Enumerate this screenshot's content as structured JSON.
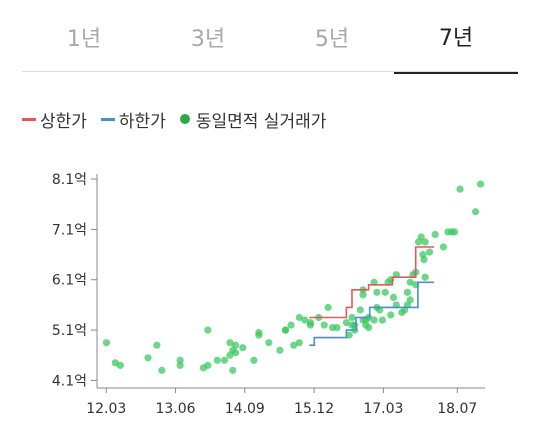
{
  "tabs": [
    {
      "label": "1년",
      "active": false
    },
    {
      "label": "3년",
      "active": false
    },
    {
      "label": "5년",
      "active": false
    },
    {
      "label": "7년",
      "active": true
    }
  ],
  "legend": [
    {
      "label": "상한가",
      "color": "#e05a5a",
      "shape": "line"
    },
    {
      "label": "하한가",
      "color": "#4a90c8",
      "shape": "line"
    },
    {
      "label": "동일면적 실거래가",
      "color": "#2aa84a",
      "shape": "dot"
    }
  ],
  "chart_data": {
    "type": "scatter",
    "x_axis": {
      "ticks": [
        "12.03",
        "13.06",
        "14.09",
        "15.12",
        "17.03",
        "18.07"
      ]
    },
    "y_axis": {
      "ticks": [
        "4.1억",
        "5.1억",
        "6.1억",
        "7.1억",
        "8.1억"
      ],
      "unit": "억",
      "range": [
        3.95,
        8.2
      ]
    },
    "colors": {
      "upper": "#e05a5a",
      "lower": "#4a90c8",
      "trades": "#3cc860",
      "axis": "#888888"
    },
    "series": [
      {
        "name": "상한가",
        "kind": "step",
        "points": [
          [
            2015.83,
            5.35
          ],
          [
            2016.5,
            5.35
          ],
          [
            2016.5,
            5.55
          ],
          [
            2016.6,
            5.55
          ],
          [
            2016.6,
            5.9
          ],
          [
            2016.9,
            5.9
          ],
          [
            2016.9,
            6.0
          ],
          [
            2017.33,
            6.0
          ],
          [
            2017.33,
            6.15
          ],
          [
            2017.75,
            6.15
          ],
          [
            2017.75,
            6.75
          ],
          [
            2018.08,
            6.75
          ]
        ]
      },
      {
        "name": "하한가",
        "kind": "step",
        "points": [
          [
            2015.83,
            4.8
          ],
          [
            2015.92,
            4.8
          ],
          [
            2015.92,
            4.95
          ],
          [
            2016.5,
            4.95
          ],
          [
            2016.5,
            5.1
          ],
          [
            2016.67,
            5.1
          ],
          [
            2016.67,
            5.35
          ],
          [
            2016.92,
            5.35
          ],
          [
            2016.92,
            5.55
          ],
          [
            2017.5,
            5.55
          ],
          [
            2017.5,
            5.55
          ],
          [
            2017.79,
            5.55
          ],
          [
            2017.79,
            6.05
          ],
          [
            2018.08,
            6.05
          ]
        ]
      },
      {
        "name": "동일면적 실거래가",
        "kind": "scatter",
        "points": [
          [
            2012.17,
            4.85
          ],
          [
            2012.33,
            4.45
          ],
          [
            2012.42,
            4.4
          ],
          [
            2012.92,
            4.55
          ],
          [
            2013.08,
            4.8
          ],
          [
            2013.17,
            4.3
          ],
          [
            2013.5,
            4.5
          ],
          [
            2013.5,
            4.4
          ],
          [
            2013.92,
            4.35
          ],
          [
            2014.0,
            5.1
          ],
          [
            2014.0,
            4.4
          ],
          [
            2014.17,
            4.5
          ],
          [
            2014.3,
            4.5
          ],
          [
            2014.4,
            4.85
          ],
          [
            2014.4,
            4.6
          ],
          [
            2014.45,
            4.7
          ],
          [
            2014.45,
            4.3
          ],
          [
            2014.5,
            4.8
          ],
          [
            2014.5,
            4.65
          ],
          [
            2014.63,
            4.75
          ],
          [
            2014.83,
            4.5
          ],
          [
            2014.92,
            5.0
          ],
          [
            2014.92,
            5.05
          ],
          [
            2015.1,
            4.85
          ],
          [
            2015.3,
            4.7
          ],
          [
            2015.4,
            5.1
          ],
          [
            2015.4,
            5.1
          ],
          [
            2015.5,
            5.2
          ],
          [
            2015.55,
            4.8
          ],
          [
            2015.65,
            4.85
          ],
          [
            2015.65,
            5.35
          ],
          [
            2015.75,
            5.3
          ],
          [
            2015.85,
            5.25
          ],
          [
            2015.85,
            5.2
          ],
          [
            2016.0,
            5.35
          ],
          [
            2016.1,
            5.2
          ],
          [
            2016.17,
            5.55
          ],
          [
            2016.25,
            5.15
          ],
          [
            2016.33,
            5.15
          ],
          [
            2016.5,
            5.25
          ],
          [
            2016.55,
            5.0
          ],
          [
            2016.6,
            5.35
          ],
          [
            2016.6,
            5.2
          ],
          [
            2016.65,
            5.2
          ],
          [
            2016.65,
            5.1
          ],
          [
            2016.75,
            5.5
          ],
          [
            2016.8,
            5.3
          ],
          [
            2016.8,
            5.9
          ],
          [
            2016.8,
            5.8
          ],
          [
            2016.85,
            5.3
          ],
          [
            2016.85,
            5.2
          ],
          [
            2016.9,
            5.35
          ],
          [
            2016.9,
            5.15
          ],
          [
            2017.0,
            5.3
          ],
          [
            2017.0,
            6.05
          ],
          [
            2017.05,
            5.85
          ],
          [
            2017.05,
            5.55
          ],
          [
            2017.1,
            5.5
          ],
          [
            2017.15,
            5.3
          ],
          [
            2017.2,
            5.85
          ],
          [
            2017.25,
            6.05
          ],
          [
            2017.3,
            5.4
          ],
          [
            2017.3,
            6.1
          ],
          [
            2017.35,
            5.75
          ],
          [
            2017.4,
            6.2
          ],
          [
            2017.4,
            5.6
          ],
          [
            2017.5,
            5.45
          ],
          [
            2017.55,
            5.5
          ],
          [
            2017.6,
            5.85
          ],
          [
            2017.6,
            5.6
          ],
          [
            2017.65,
            5.7
          ],
          [
            2017.65,
            6.05
          ],
          [
            2017.7,
            6.2
          ],
          [
            2017.75,
            6.25
          ],
          [
            2017.75,
            6.0
          ],
          [
            2017.8,
            6.85
          ],
          [
            2017.85,
            6.95
          ],
          [
            2017.88,
            6.6
          ],
          [
            2017.9,
            6.5
          ],
          [
            2017.92,
            6.15
          ],
          [
            2017.92,
            6.85
          ],
          [
            2018.0,
            6.65
          ],
          [
            2018.1,
            7.0
          ],
          [
            2018.25,
            6.75
          ],
          [
            2018.33,
            7.05
          ],
          [
            2018.4,
            7.05
          ],
          [
            2018.45,
            7.05
          ],
          [
            2018.55,
            7.9
          ],
          [
            2018.83,
            7.45
          ],
          [
            2018.92,
            8.0
          ]
        ]
      }
    ]
  }
}
